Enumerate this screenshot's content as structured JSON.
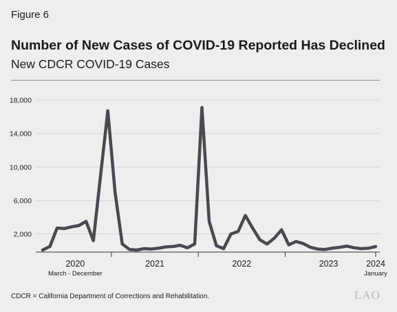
{
  "figure_label": "Figure 6",
  "title": "Number of New Cases of COVID-19 Reported Has Declined",
  "subtitle": "New CDCR COVID-19 Cases",
  "footnote": "CDCR = California Department of Corrections and Rehabilitation.",
  "logo_text": "LAO",
  "colors": {
    "line": "#4a4850",
    "grid": "#d6d6d9",
    "axis": "#333333",
    "background": "#eeeeef"
  },
  "chart_data": {
    "type": "line",
    "title": "New CDCR COVID-19 Cases",
    "xlabel": "",
    "ylabel": "",
    "ylim": [
      0,
      18000
    ],
    "y_ticks": [
      2000,
      6000,
      10000,
      14000,
      18000
    ],
    "y_tick_labels": [
      "2,000",
      "6,000",
      "10,000",
      "14,000",
      "18,000"
    ],
    "grid": true,
    "x": [
      "2020-03",
      "2020-04",
      "2020-05",
      "2020-06",
      "2020-07",
      "2020-08",
      "2020-09",
      "2020-10",
      "2020-11",
      "2020-12",
      "2021-01",
      "2021-02",
      "2021-03",
      "2021-04",
      "2021-05",
      "2021-06",
      "2021-07",
      "2021-08",
      "2021-09",
      "2021-10",
      "2021-11",
      "2021-12",
      "2022-01",
      "2022-02",
      "2022-03",
      "2022-04",
      "2022-05",
      "2022-06",
      "2022-07",
      "2022-08",
      "2022-09",
      "2022-10",
      "2022-11",
      "2022-12",
      "2023-01",
      "2023-02",
      "2023-03",
      "2023-04",
      "2023-05",
      "2023-06",
      "2023-07",
      "2023-08",
      "2023-09",
      "2023-10",
      "2023-11",
      "2023-12",
      "2024-01"
    ],
    "series": [
      {
        "values": [
          80,
          500,
          2700,
          2650,
          2850,
          3000,
          3500,
          1200,
          9000,
          16700,
          7000,
          800,
          150,
          80,
          250,
          200,
          300,
          450,
          500,
          650,
          350,
          800,
          17100,
          3500,
          600,
          250,
          2000,
          2300,
          4200,
          2700,
          1300,
          800,
          1500,
          2500,
          700,
          1100,
          850,
          400,
          200,
          150,
          300,
          400,
          550,
          350,
          250,
          300,
          500
        ]
      }
    ],
    "x_year_labels": [
      {
        "label": "2020",
        "sub": "March - December"
      },
      {
        "label": "2021",
        "sub": ""
      },
      {
        "label": "2022",
        "sub": ""
      },
      {
        "label": "2023",
        "sub": ""
      },
      {
        "label": "2024",
        "sub": "January"
      }
    ]
  }
}
